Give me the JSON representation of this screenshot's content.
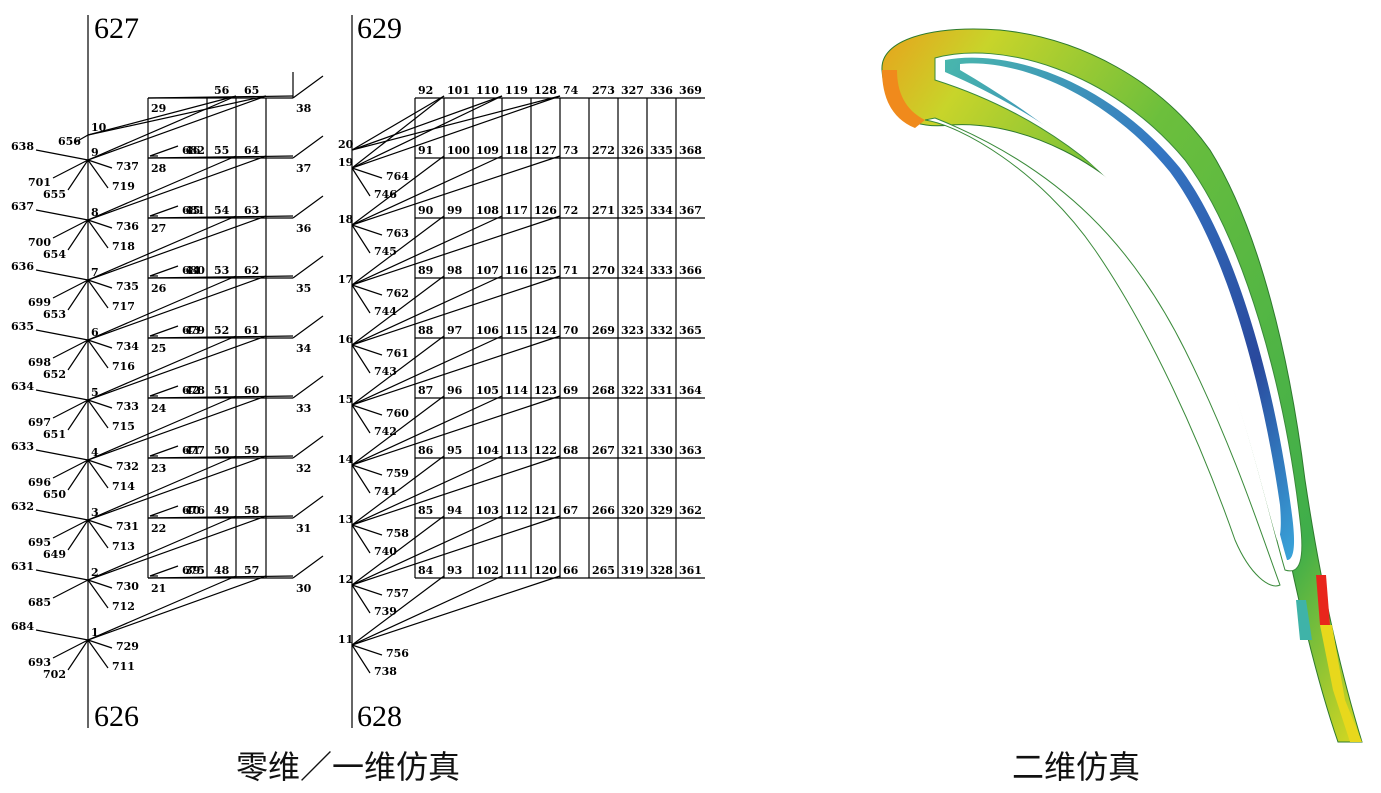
{
  "captions": {
    "left": "零维／一维仿真",
    "right": "二维仿真"
  },
  "network_a": {
    "top_label": "627",
    "bottom_label": "626",
    "nodes": [
      {
        "num": "1",
        "spokes": {
          "left": [
            "684",
            "693",
            "702"
          ],
          "right": [
            "729",
            "711"
          ]
        }
      },
      {
        "num": "2",
        "spokes": {
          "left": [
            "631",
            "685"
          ],
          "right": [
            "730",
            "712"
          ]
        }
      },
      {
        "num": "3",
        "spokes": {
          "left": [
            "632",
            "695",
            "649"
          ],
          "right": [
            "731",
            "713"
          ]
        }
      },
      {
        "num": "4",
        "spokes": {
          "left": [
            "633",
            "696",
            "650"
          ],
          "right": [
            "732",
            "714"
          ]
        }
      },
      {
        "num": "5",
        "spokes": {
          "left": [
            "634",
            "697",
            "651"
          ],
          "right": [
            "733",
            "715"
          ]
        }
      },
      {
        "num": "6",
        "spokes": {
          "left": [
            "635",
            "698",
            "652"
          ],
          "right": [
            "734",
            "716"
          ]
        }
      },
      {
        "num": "7",
        "spokes": {
          "left": [
            "636",
            "699",
            "653"
          ],
          "right": [
            "735",
            "717"
          ]
        }
      },
      {
        "num": "8",
        "spokes": {
          "left": [
            "637",
            "700",
            "654"
          ],
          "right": [
            "736",
            "718"
          ]
        }
      },
      {
        "num": "9",
        "spokes": {
          "left": [
            "638",
            "701",
            "655"
          ],
          "right": [
            "737",
            "719"
          ]
        }
      },
      {
        "num": "10",
        "spokes": {
          "left": [
            "656"
          ],
          "right": []
        }
      }
    ],
    "rows": [
      {
        "left": "21",
        "arrow": "675",
        "cells": [
          "39",
          "48",
          "57"
        ],
        "right": "30"
      },
      {
        "left": "22",
        "arrow": "676",
        "cells": [
          "40",
          "49",
          "58"
        ],
        "right": "31"
      },
      {
        "left": "23",
        "arrow": "677",
        "cells": [
          "41",
          "50",
          "59"
        ],
        "right": "32"
      },
      {
        "left": "24",
        "arrow": "678",
        "cells": [
          "42",
          "51",
          "60"
        ],
        "right": "33"
      },
      {
        "left": "25",
        "arrow": "679",
        "cells": [
          "43",
          "52",
          "61"
        ],
        "right": "34"
      },
      {
        "left": "26",
        "arrow": "680",
        "cells": [
          "44",
          "53",
          "62"
        ],
        "right": "35"
      },
      {
        "left": "27",
        "arrow": "681",
        "cells": [
          "45",
          "54",
          "63"
        ],
        "right": "36"
      },
      {
        "left": "28",
        "arrow": "682",
        "cells": [
          "46",
          "55",
          "64"
        ],
        "right": "37"
      },
      {
        "left": "29",
        "arrow": "",
        "cells": [
          "",
          "56",
          "65"
        ],
        "right": "38"
      }
    ]
  },
  "network_b": {
    "top_label": "629",
    "bottom_label": "628",
    "nodes": [
      {
        "num": "11",
        "spokes": {
          "right": [
            "756",
            "738"
          ]
        }
      },
      {
        "num": "12",
        "spokes": {
          "right": [
            "757",
            "739"
          ]
        }
      },
      {
        "num": "13",
        "spokes": {
          "right": [
            "758",
            "740"
          ]
        }
      },
      {
        "num": "14",
        "spokes": {
          "right": [
            "759",
            "741"
          ]
        }
      },
      {
        "num": "15",
        "spokes": {
          "right": [
            "760",
            "742"
          ]
        }
      },
      {
        "num": "16",
        "spokes": {
          "right": [
            "761",
            "743"
          ]
        }
      },
      {
        "num": "17",
        "spokes": {
          "right": [
            "762",
            "744"
          ]
        }
      },
      {
        "num": "18",
        "spokes": {
          "right": [
            "763",
            "745"
          ]
        }
      },
      {
        "num": "19",
        "spokes": {
          "right": [
            "764",
            "746"
          ]
        }
      },
      {
        "num": "20",
        "spokes": {
          "right": []
        }
      }
    ],
    "rows": [
      {
        "cells": [
          "84",
          "93",
          "102",
          "111",
          "120",
          "66",
          "265",
          "319",
          "328",
          "361"
        ]
      },
      {
        "cells": [
          "85",
          "94",
          "103",
          "112",
          "121",
          "67",
          "266",
          "320",
          "329",
          "362"
        ]
      },
      {
        "cells": [
          "86",
          "95",
          "104",
          "113",
          "122",
          "68",
          "267",
          "321",
          "330",
          "363"
        ]
      },
      {
        "cells": [
          "87",
          "96",
          "105",
          "114",
          "123",
          "69",
          "268",
          "322",
          "331",
          "364"
        ]
      },
      {
        "cells": [
          "88",
          "97",
          "106",
          "115",
          "124",
          "70",
          "269",
          "323",
          "332",
          "365"
        ]
      },
      {
        "cells": [
          "89",
          "98",
          "107",
          "116",
          "125",
          "71",
          "270",
          "324",
          "333",
          "366"
        ]
      },
      {
        "cells": [
          "90",
          "99",
          "108",
          "117",
          "126",
          "72",
          "271",
          "325",
          "334",
          "367"
        ]
      },
      {
        "cells": [
          "91",
          "100",
          "109",
          "118",
          "127",
          "73",
          "272",
          "326",
          "335",
          "368"
        ]
      },
      {
        "cells": [
          "92",
          "101",
          "110",
          "119",
          "128",
          "74",
          "273",
          "327",
          "336",
          "369"
        ]
      }
    ]
  },
  "colors": {
    "blade_outer_green": "#4caf3a",
    "blade_inner_blue": "#1e4fa8",
    "blade_hot_red": "#e8261c",
    "blade_yellow": "#e8d81c",
    "blade_teal": "#3fb3a8"
  }
}
